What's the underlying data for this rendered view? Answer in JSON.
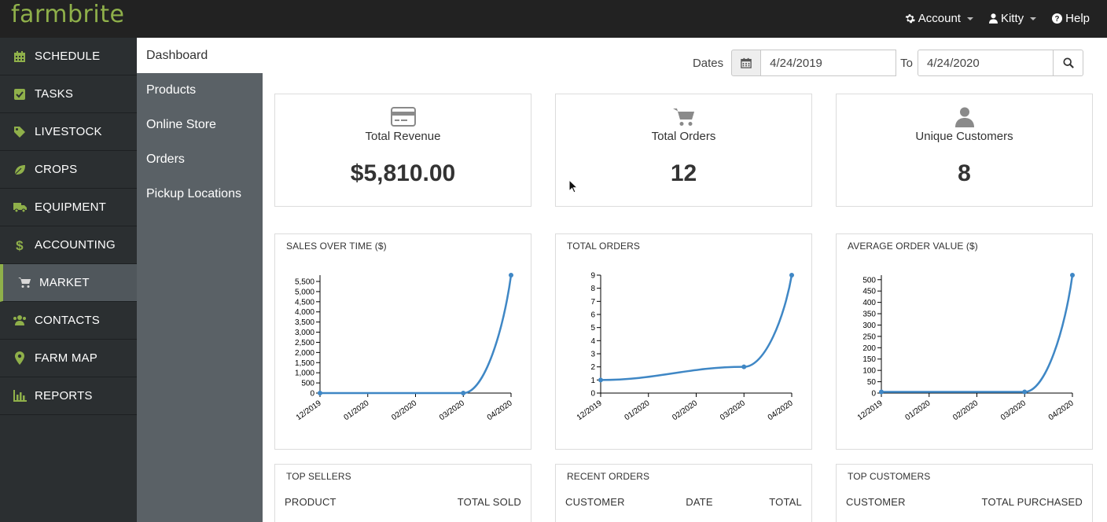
{
  "app": {
    "logo": "farmbrite"
  },
  "topnav": {
    "account": "Account",
    "user": "Kitty",
    "help": "Help"
  },
  "sidebar": {
    "items": [
      {
        "label": "SCHEDULE",
        "icon": "calendar-icon"
      },
      {
        "label": "TASKS",
        "icon": "checkbox-icon"
      },
      {
        "label": "LIVESTOCK",
        "icon": "tag-icon"
      },
      {
        "label": "CROPS",
        "icon": "leaf-icon"
      },
      {
        "label": "EQUIPMENT",
        "icon": "truck-icon"
      },
      {
        "label": "ACCOUNTING",
        "icon": "dollar-icon"
      },
      {
        "label": "MARKET",
        "icon": "cart-icon",
        "active": true
      },
      {
        "label": "CONTACTS",
        "icon": "users-icon"
      },
      {
        "label": "FARM MAP",
        "icon": "map-marker-icon"
      },
      {
        "label": "REPORTS",
        "icon": "bar-chart-icon"
      }
    ]
  },
  "subnav": {
    "items": [
      "Dashboard",
      "Products",
      "Online Store",
      "Orders",
      "Pickup Locations"
    ],
    "active": "Dashboard"
  },
  "datebar": {
    "label": "Dates",
    "from": "4/24/2019",
    "to_label": "To",
    "to": "4/24/2020"
  },
  "stats": [
    {
      "label": "Total Revenue",
      "value": "$5,810.00",
      "icon": "credit-card-icon"
    },
    {
      "label": "Total Orders",
      "value": "12",
      "icon": "cart-icon"
    },
    {
      "label": "Unique Customers",
      "value": "8",
      "icon": "user-icon"
    }
  ],
  "colors": {
    "brand": "#8fb04a",
    "line": "#3f87c5",
    "topbar": "#222222",
    "sidebar": "#2b2f31",
    "subnav": "#5a6166"
  },
  "chart_data": [
    {
      "type": "line",
      "title": "SALES OVER TIME ($)",
      "x": [
        "12/2019",
        "01/2020",
        "02/2020",
        "03/2020",
        "04/2020"
      ],
      "points": [
        {
          "x": 0,
          "y": 0
        },
        {
          "x": 3,
          "y": 0
        },
        {
          "x": 4,
          "y": 5810
        }
      ],
      "yticks": [
        0,
        500,
        1000,
        1500,
        2000,
        2500,
        3000,
        3500,
        4000,
        4500,
        5000,
        5500
      ],
      "ytick_labels": [
        "0",
        "500",
        "1,000",
        "1,500",
        "2,000",
        "2,500",
        "3,000",
        "3,500",
        "4,000",
        "4,500",
        "5,000",
        "5,500"
      ],
      "ylim": [
        0,
        5810
      ]
    },
    {
      "type": "line",
      "title": "TOTAL ORDERS",
      "x": [
        "12/2019",
        "01/2020",
        "02/2020",
        "03/2020",
        "04/2020"
      ],
      "points": [
        {
          "x": 0,
          "y": 1
        },
        {
          "x": 3,
          "y": 2
        },
        {
          "x": 4,
          "y": 9
        }
      ],
      "yticks": [
        0,
        1,
        2,
        3,
        4,
        5,
        6,
        7,
        8,
        9
      ],
      "ytick_labels": [
        "0",
        "1",
        "2",
        "3",
        "4",
        "5",
        "6",
        "7",
        "8",
        "9"
      ],
      "ylim": [
        0,
        9
      ]
    },
    {
      "type": "line",
      "title": "AVERAGE ORDER VALUE ($)",
      "x": [
        "12/2019",
        "01/2020",
        "02/2020",
        "03/2020",
        "04/2020"
      ],
      "points": [
        {
          "x": 0,
          "y": 5
        },
        {
          "x": 3,
          "y": 5
        },
        {
          "x": 4,
          "y": 520
        }
      ],
      "yticks": [
        0,
        50,
        100,
        150,
        200,
        250,
        300,
        350,
        400,
        450,
        500
      ],
      "ytick_labels": [
        "0",
        "50",
        "100",
        "150",
        "200",
        "250",
        "300",
        "350",
        "400",
        "450",
        "500"
      ],
      "ylim": [
        0,
        520
      ]
    }
  ],
  "tables": [
    {
      "title": "TOP SELLERS",
      "columns": [
        "PRODUCT",
        "TOTAL SOLD"
      ]
    },
    {
      "title": "RECENT ORDERS",
      "columns": [
        "CUSTOMER",
        "DATE",
        "TOTAL"
      ]
    },
    {
      "title": "TOP CUSTOMERS",
      "columns": [
        "CUSTOMER",
        "TOTAL PURCHASED"
      ]
    }
  ]
}
